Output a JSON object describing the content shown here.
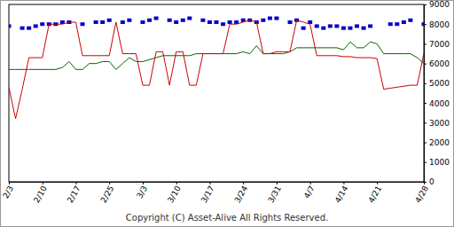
{
  "chart_data": {
    "type": "line",
    "categories": [
      "2/3",
      null,
      null,
      null,
      null,
      "2/10",
      null,
      null,
      null,
      null,
      "2/17",
      null,
      null,
      null,
      null,
      "2/25",
      null,
      null,
      null,
      null,
      "3/3",
      null,
      null,
      null,
      null,
      "3/10",
      null,
      null,
      null,
      null,
      "3/17",
      null,
      null,
      null,
      null,
      "3/24",
      null,
      null,
      null,
      null,
      "3/31",
      null,
      null,
      null,
      null,
      "4/7",
      null,
      null,
      null,
      null,
      "4/14",
      null,
      null,
      null,
      null,
      "4/21",
      null,
      null,
      null,
      null,
      null,
      null,
      "4/28"
    ],
    "series": [
      {
        "color": "#0000cc",
        "type": "scatter",
        "marker": "square",
        "values": [
          7900,
          null,
          7800,
          7800,
          7900,
          8000,
          8000,
          8000,
          8100,
          8100,
          null,
          8000,
          null,
          8100,
          8100,
          8200,
          null,
          8100,
          8200,
          null,
          8100,
          8200,
          8300,
          null,
          8200,
          8100,
          8200,
          8300,
          null,
          8200,
          8100,
          8100,
          8000,
          8100,
          8100,
          8200,
          8200,
          8100,
          8200,
          8300,
          8300,
          null,
          8100,
          8200,
          7800,
          8100,
          7900,
          7800,
          7900,
          7900,
          7800,
          7800,
          7900,
          7800,
          7900,
          null,
          null,
          8000,
          8000,
          8100,
          8200,
          null,
          8000
        ]
      },
      {
        "color": "#006600",
        "type": "line",
        "line_style": "solid",
        "values": [
          5700,
          5700,
          5700,
          5700,
          5700,
          5700,
          5700,
          5700,
          5800,
          6100,
          5700,
          5700,
          6000,
          6000,
          6100,
          6100,
          5700,
          6000,
          6300,
          6100,
          6100,
          6200,
          6300,
          6400,
          6400,
          6400,
          6400,
          6400,
          6500,
          6500,
          6500,
          6500,
          6500,
          6500,
          6500,
          6600,
          6500,
          6900,
          6500,
          6500,
          6500,
          6500,
          6600,
          6800,
          6800,
          6800,
          6800,
          6800,
          6800,
          6800,
          6700,
          7100,
          6800,
          6800,
          7100,
          7000,
          6500,
          6500,
          6500,
          6500,
          6500,
          6300,
          6000
        ]
      },
      {
        "color": "#cc0000",
        "type": "line",
        "line_style": "solid",
        "values": [
          4800,
          3200,
          4700,
          6300,
          6300,
          6300,
          8000,
          8000,
          8000,
          8100,
          8100,
          6400,
          6400,
          6400,
          6400,
          6400,
          8100,
          6500,
          6500,
          6500,
          4900,
          4900,
          6600,
          6600,
          4900,
          6600,
          6600,
          4900,
          4900,
          6500,
          6500,
          6500,
          6500,
          8000,
          8000,
          8100,
          8200,
          8100,
          6500,
          6500,
          6600,
          6600,
          6600,
          8200,
          8100,
          8000,
          6400,
          6400,
          6400,
          6400,
          6350,
          6350,
          6300,
          6300,
          6300,
          6250,
          4700,
          4750,
          4800,
          4850,
          4900,
          4900,
          6500
        ]
      }
    ],
    "ylim": [
      0,
      9000
    ],
    "yticks": [
      0,
      1000,
      2000,
      3000,
      4000,
      5000,
      6000,
      7000,
      8000,
      9000
    ],
    "grid": false,
    "annotations": [
      "Copyright (C) Asset-Alive All Rights Reserved."
    ]
  }
}
